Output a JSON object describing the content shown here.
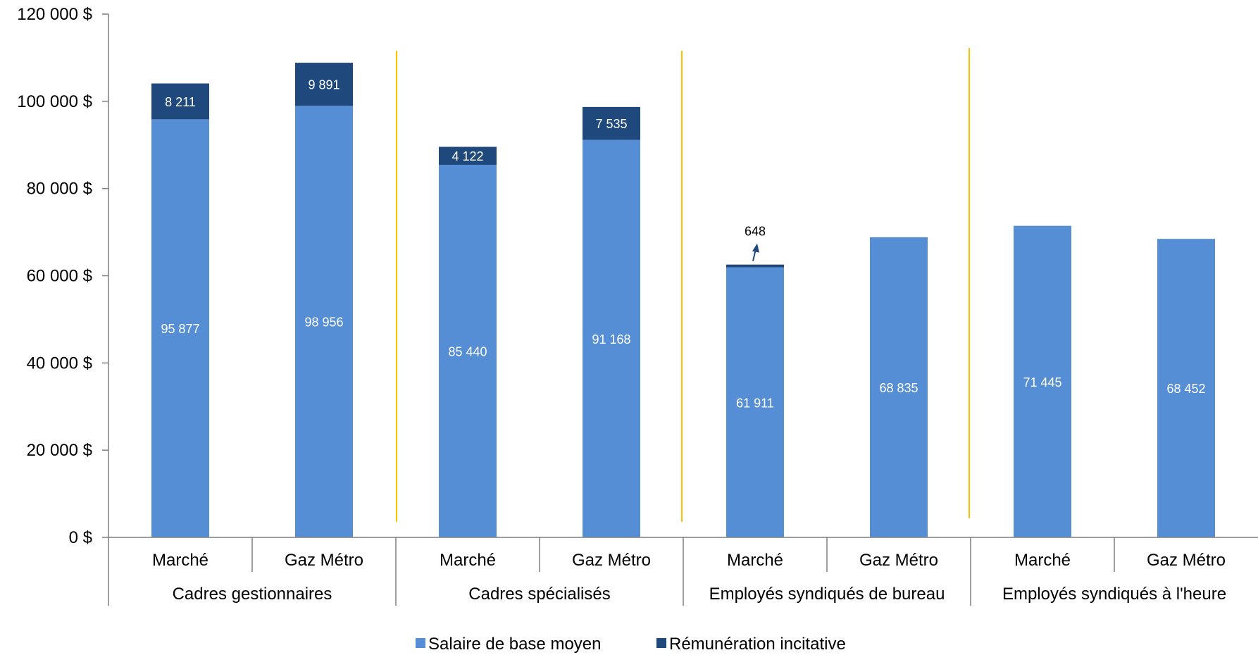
{
  "chart_data": {
    "type": "bar",
    "stacked": true,
    "ylim": [
      0,
      120000
    ],
    "yticks": [
      0,
      20000,
      40000,
      60000,
      80000,
      100000,
      120000
    ],
    "ytick_labels": [
      "0 $",
      "20 000 $",
      "40 000 $",
      "60 000 $",
      "80 000 $",
      "100 000 $",
      "120 000 $"
    ],
    "categories": [
      "Marché",
      "Gaz Métro",
      "Marché",
      "Gaz Métro",
      "Marché",
      "Gaz Métro",
      "Marché",
      "Gaz Métro"
    ],
    "groups": [
      "Cadres gestionnaires",
      "Cadres spécialisés",
      "Employés syndiqués de bureau",
      "Employés syndiqués à l'heure"
    ],
    "series": [
      {
        "name": "Salaire de base moyen",
        "color": "#558ED5",
        "values": [
          95877,
          98956,
          85440,
          91168,
          61911,
          68835,
          71445,
          68452
        ],
        "labels": [
          "95 877",
          "98 956",
          "85 440",
          "91 168",
          "61 911",
          "68 835",
          "71 445",
          "68 452"
        ]
      },
      {
        "name": "Rémunération incitative",
        "color": "#1F497D",
        "values": [
          8211,
          9891,
          4122,
          7535,
          648,
          0,
          0,
          0
        ],
        "labels": [
          "8 211",
          "9 891",
          "4 122",
          "7 535",
          "648",
          "",
          "",
          ""
        ]
      }
    ],
    "separator_color": "#FFC000",
    "grid": false,
    "legend_position": "bottom"
  }
}
